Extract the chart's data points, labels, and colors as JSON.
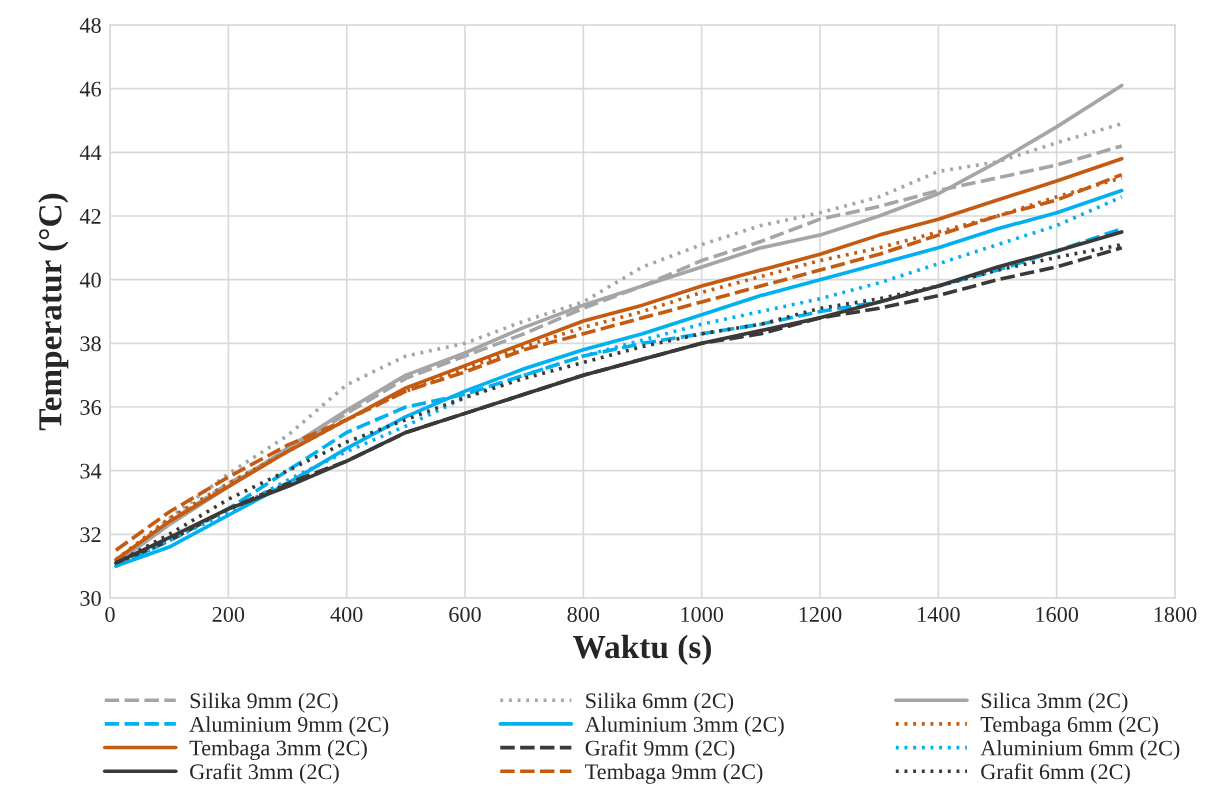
{
  "chart_data": {
    "type": "line",
    "xlabel": "Waktu (s)",
    "ylabel": "Temperatur (°C)",
    "x": [
      10,
      100,
      200,
      300,
      400,
      500,
      600,
      700,
      800,
      900,
      1000,
      1100,
      1200,
      1300,
      1400,
      1500,
      1600,
      1710
    ],
    "xlim": [
      0,
      1800
    ],
    "xticks": [
      0,
      200,
      400,
      600,
      800,
      1000,
      1200,
      1400,
      1600,
      1800
    ],
    "ylim": [
      30,
      48
    ],
    "yticks": [
      30,
      32,
      34,
      36,
      38,
      40,
      42,
      44,
      46,
      48
    ],
    "grid": true,
    "legend": "bottom",
    "marker": "none",
    "series": [
      {
        "name": "Silika 9mm (2C)",
        "color": "#a5a5a5",
        "line_style": "dashed",
        "values": [
          31.1,
          32.4,
          33.6,
          34.6,
          35.8,
          36.9,
          37.6,
          38.3,
          39.1,
          39.8,
          40.6,
          41.2,
          41.9,
          42.3,
          42.8,
          43.2,
          43.6,
          44.2
        ]
      },
      {
        "name": "Silika 6mm (2C)",
        "color": "#a5a5a5",
        "line_style": "dotted",
        "values": [
          31.1,
          32.5,
          33.9,
          35.1,
          36.7,
          37.6,
          38.0,
          38.7,
          39.3,
          40.4,
          41.1,
          41.7,
          42.1,
          42.6,
          43.4,
          43.7,
          44.3,
          44.9
        ]
      },
      {
        "name": "Silica 3mm (2C)",
        "color": "#a5a5a5",
        "line_style": "solid",
        "values": [
          31.1,
          32.3,
          33.5,
          34.7,
          35.9,
          37.0,
          37.7,
          38.5,
          39.2,
          39.8,
          40.4,
          41.0,
          41.4,
          42.0,
          42.7,
          43.7,
          44.8,
          46.1
        ]
      },
      {
        "name": "Aluminium 9mm (2C)",
        "color": "#00b0f0",
        "line_style": "dashed",
        "values": [
          31.0,
          31.8,
          32.8,
          34.0,
          35.2,
          36.0,
          36.4,
          37.0,
          37.6,
          38.0,
          38.3,
          38.6,
          39.0,
          39.3,
          39.8,
          40.3,
          40.9,
          41.6
        ]
      },
      {
        "name": "Aluminium 3mm (2C)",
        "color": "#00b0f0",
        "line_style": "solid",
        "values": [
          31.0,
          31.6,
          32.6,
          33.6,
          34.7,
          35.7,
          36.5,
          37.2,
          37.8,
          38.3,
          38.9,
          39.5,
          40.0,
          40.5,
          41.0,
          41.6,
          42.1,
          42.8
        ]
      },
      {
        "name": "Tembaga 6mm (2C)",
        "color": "#c55a11",
        "line_style": "dotted",
        "values": [
          31.2,
          32.5,
          33.6,
          34.6,
          35.6,
          36.5,
          37.2,
          37.9,
          38.5,
          39.0,
          39.6,
          40.1,
          40.6,
          41.0,
          41.5,
          42.0,
          42.6,
          43.2
        ]
      },
      {
        "name": "Tembaga 3mm (2C)",
        "color": "#c55a11",
        "line_style": "solid",
        "values": [
          31.2,
          32.4,
          33.5,
          34.6,
          35.6,
          36.6,
          37.3,
          38.0,
          38.7,
          39.2,
          39.8,
          40.3,
          40.8,
          41.4,
          41.9,
          42.5,
          43.1,
          43.8
        ]
      },
      {
        "name": "Grafit 9mm (2C)",
        "color": "#3b3838",
        "line_style": "dashed",
        "values": [
          31.1,
          31.8,
          32.8,
          33.6,
          34.3,
          35.2,
          35.8,
          36.4,
          37.0,
          37.5,
          38.0,
          38.3,
          38.8,
          39.1,
          39.5,
          40.0,
          40.4,
          41.0
        ]
      },
      {
        "name": "Aluminium 6mm (2C)",
        "color": "#00b0f0",
        "line_style": "dotted",
        "values": [
          31.0,
          31.8,
          32.7,
          33.7,
          34.6,
          35.4,
          36.3,
          37.0,
          37.6,
          38.1,
          38.6,
          39.0,
          39.4,
          39.9,
          40.5,
          41.1,
          41.7,
          42.6
        ]
      },
      {
        "name": "Grafit 3mm (2C)",
        "color": "#3b3838",
        "line_style": "solid",
        "values": [
          31.1,
          31.9,
          32.8,
          33.5,
          34.3,
          35.2,
          35.8,
          36.4,
          37.0,
          37.5,
          38.0,
          38.4,
          38.8,
          39.3,
          39.8,
          40.4,
          40.9,
          41.5
        ]
      },
      {
        "name": "Tembaga 9mm (2C)",
        "color": "#c55a11",
        "line_style": "dashed",
        "values": [
          31.5,
          32.7,
          33.8,
          34.8,
          35.6,
          36.5,
          37.1,
          37.8,
          38.3,
          38.8,
          39.3,
          39.8,
          40.3,
          40.8,
          41.4,
          42.0,
          42.5,
          43.3
        ]
      },
      {
        "name": "Grafit 6mm (2C)",
        "color": "#3b3838",
        "line_style": "dotted",
        "values": [
          31.1,
          32.0,
          33.1,
          34.0,
          34.9,
          35.6,
          36.3,
          36.9,
          37.4,
          37.9,
          38.3,
          38.6,
          39.1,
          39.4,
          39.8,
          40.3,
          40.7,
          41.1
        ]
      }
    ]
  }
}
